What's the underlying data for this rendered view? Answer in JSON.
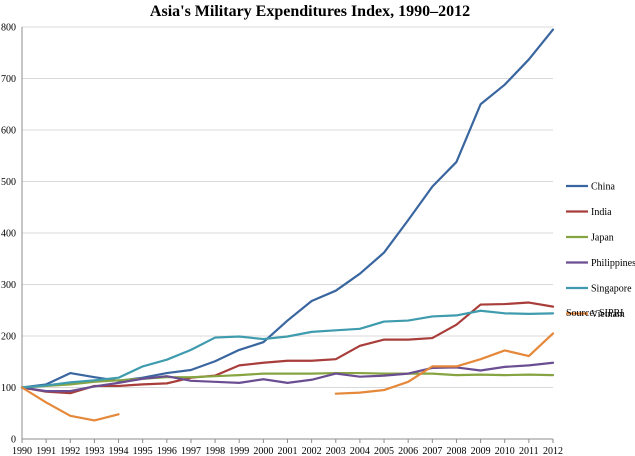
{
  "chart_data": {
    "type": "line",
    "title": "Asia's Military Expenditures Index, 1990–2012",
    "xlabel": "",
    "ylabel": "",
    "ylim": [
      0,
      800
    ],
    "yticks": [
      0,
      100,
      200,
      300,
      400,
      500,
      600,
      700,
      800
    ],
    "x": [
      "1990",
      "1991",
      "1992",
      "1993",
      "1994",
      "1995",
      "1996",
      "1997",
      "1998",
      "1999",
      "2000",
      "2001",
      "2002",
      "2003",
      "2004",
      "2005",
      "2006",
      "2007",
      "2008",
      "2009",
      "2010",
      "2011",
      "2012"
    ],
    "grid": "horizontal",
    "legend_position": "right",
    "source": "Source: SIPRI",
    "series": [
      {
        "name": "China",
        "color": "#3A66A0",
        "values": [
          100,
          106,
          128,
          120,
          113,
          119,
          128,
          134,
          151,
          173,
          188,
          230,
          268,
          288,
          321,
          362,
          425,
          490,
          538,
          650,
          688,
          737,
          795
        ]
      },
      {
        "name": "India",
        "color": "#A83D3A",
        "values": [
          100,
          92,
          89,
          103,
          103,
          106,
          108,
          119,
          123,
          143,
          148,
          152,
          152,
          155,
          181,
          193,
          193,
          196,
          222,
          261,
          262,
          265,
          257
        ]
      },
      {
        "name": "Japan",
        "color": "#86A542",
        "values": [
          100,
          103,
          106,
          111,
          114,
          117,
          120,
          120,
          122,
          124,
          127,
          127,
          127,
          128,
          128,
          127,
          127,
          127,
          124,
          125,
          124,
          125,
          124
        ]
      },
      {
        "name": "Philippines",
        "color": "#6A4E91",
        "values": [
          100,
          93,
          93,
          102,
          109,
          117,
          122,
          113,
          111,
          109,
          116,
          109,
          115,
          127,
          121,
          123,
          127,
          138,
          139,
          133,
          140,
          143,
          148
        ]
      },
      {
        "name": "Singapore",
        "color": "#3F9BAE",
        "values": [
          100,
          104,
          110,
          114,
          119,
          141,
          154,
          173,
          197,
          199,
          194,
          199,
          208,
          211,
          214,
          228,
          230,
          238,
          240,
          249,
          244,
          243,
          244
        ]
      },
      {
        "name": "Vietnam",
        "color": "#E5883A",
        "values": [
          100,
          71,
          45,
          36,
          48,
          null,
          null,
          null,
          null,
          null,
          null,
          null,
          null,
          88,
          90,
          95,
          111,
          141,
          141,
          155,
          172,
          161,
          205
        ]
      }
    ]
  }
}
